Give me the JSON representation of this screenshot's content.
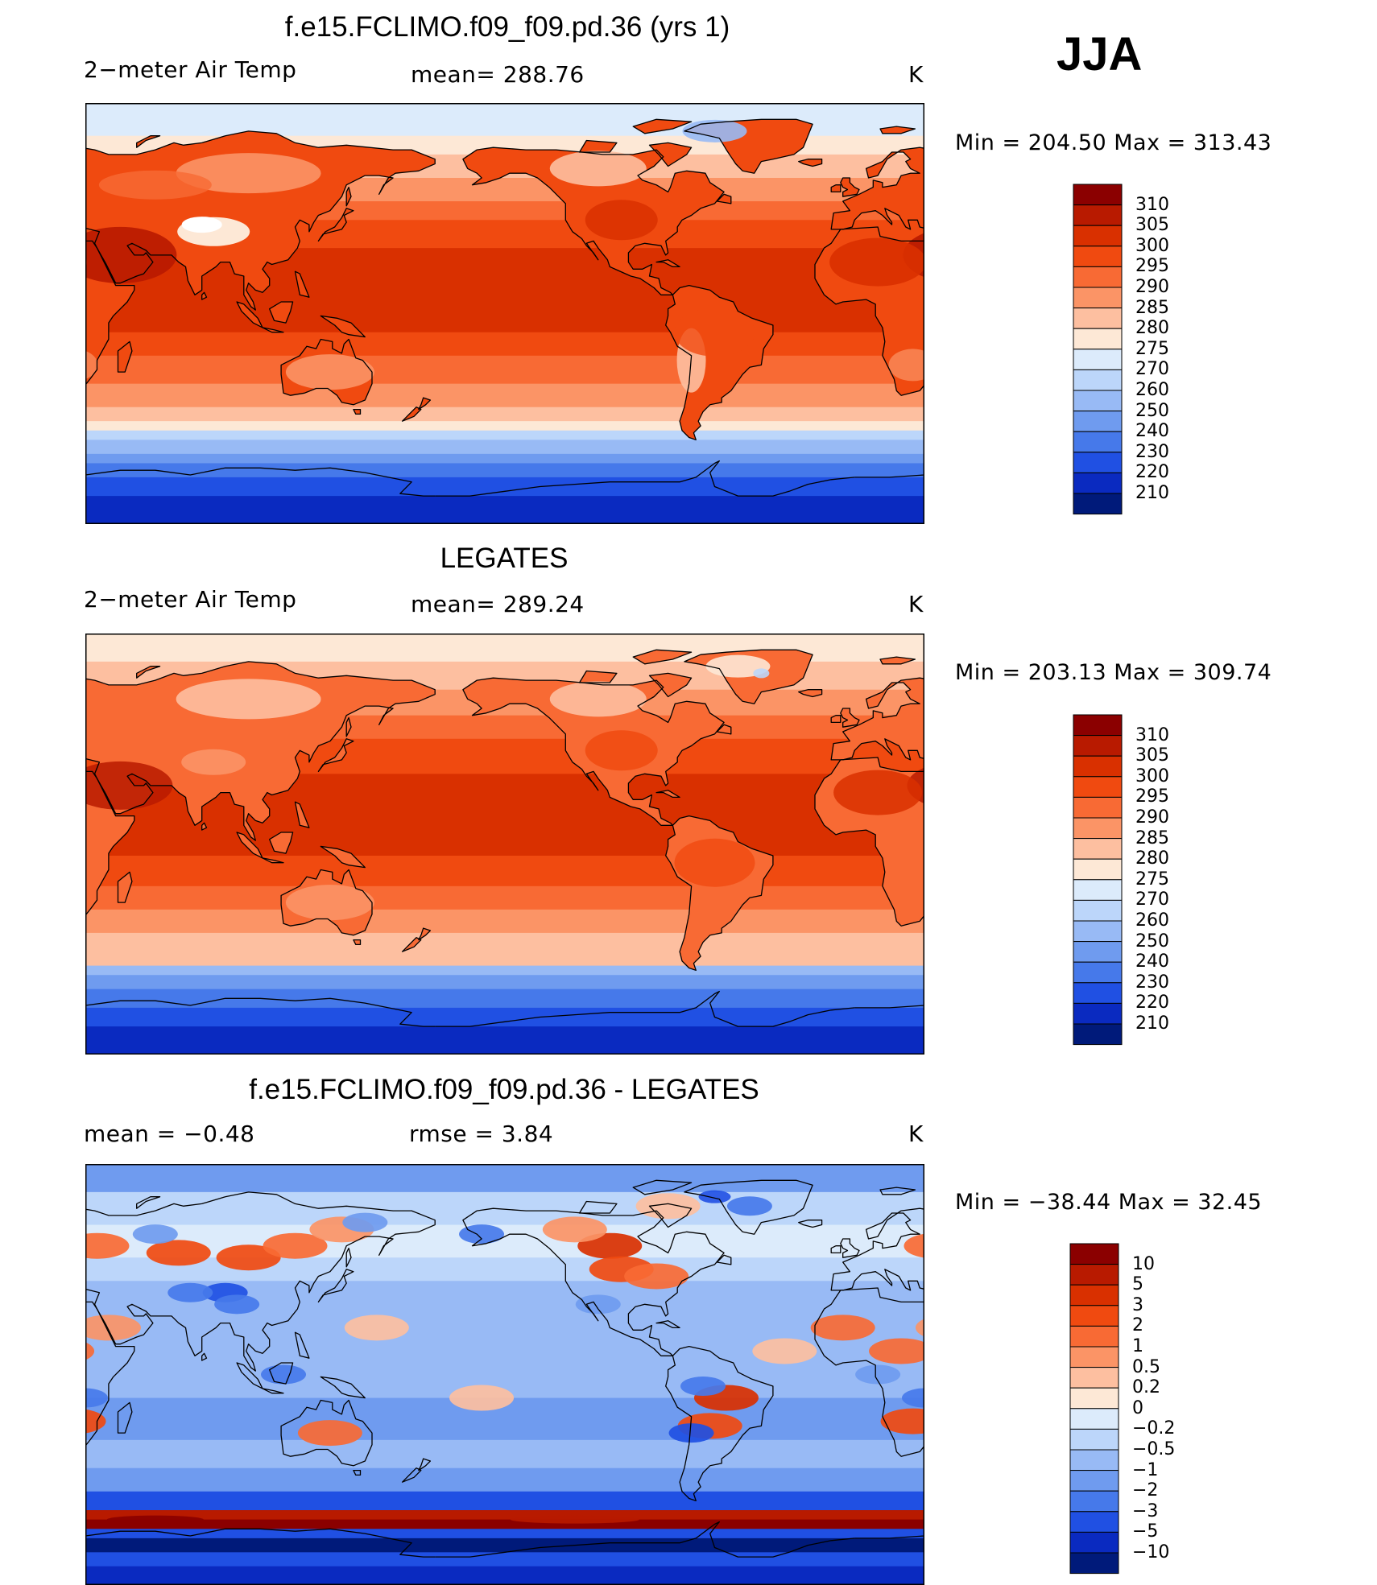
{
  "season": "JJA",
  "panels": [
    {
      "title": "f.e15.FCLIMO.f09_f09.pd.36 (yrs 1)",
      "left_label": "2−meter Air Temp",
      "center_label": "mean=  288.76",
      "units": "K",
      "minmax": "Min  =  204.50  Max  =  313.43",
      "field": "model",
      "colorbar": {
        "labels": [
          "310",
          "305",
          "300",
          "295",
          "290",
          "285",
          "280",
          "275",
          "270",
          "260",
          "250",
          "240",
          "230",
          "220",
          "210"
        ],
        "colors": [
          "#8b0000",
          "#b81a00",
          "#d93000",
          "#f04a10",
          "#f86a34",
          "#fb9466",
          "#fdbfa0",
          "#fde8d6",
          "#dcebfb",
          "#bcd6fa",
          "#98baf5",
          "#6f9bef",
          "#4679ea",
          "#2050e3",
          "#0a2ac0",
          "#001a7a"
        ]
      }
    },
    {
      "title": "LEGATES",
      "left_label": "2−meter Air Temp",
      "center_label": "mean=  289.24",
      "units": "K",
      "minmax": "Min  =  203.13  Max  =  309.74",
      "field": "obs",
      "colorbar": {
        "labels": [
          "310",
          "305",
          "300",
          "295",
          "290",
          "285",
          "280",
          "275",
          "270",
          "260",
          "250",
          "240",
          "230",
          "220",
          "210"
        ],
        "colors": [
          "#8b0000",
          "#b81a00",
          "#d93000",
          "#f04a10",
          "#f86a34",
          "#fb9466",
          "#fdbfa0",
          "#fde8d6",
          "#dcebfb",
          "#bcd6fa",
          "#98baf5",
          "#6f9bef",
          "#4679ea",
          "#2050e3",
          "#0a2ac0",
          "#001a7a"
        ]
      }
    },
    {
      "title": "f.e15.FCLIMO.f09_f09.pd.36 - LEGATES",
      "left_label": "mean =    −0.48",
      "center_label": "rmse =     3.84",
      "units": "K",
      "minmax": "Min  =  −38.44  Max  =    32.45",
      "field": "diff",
      "colorbar": {
        "labels": [
          "10",
          "5",
          "3",
          "2",
          "1",
          "0.5",
          "0.2",
          "0",
          "−0.2",
          "−0.5",
          "−1",
          "−2",
          "−3",
          "−5",
          "−10"
        ],
        "colors": [
          "#8b0000",
          "#b81a00",
          "#d93000",
          "#f04a10",
          "#f86a34",
          "#fb9466",
          "#fdbfa0",
          "#fde8d6",
          "#dcebfb",
          "#bcd6fa",
          "#98baf5",
          "#6f9bef",
          "#4679ea",
          "#2050e3",
          "#0a2ac0",
          "#001a7a"
        ]
      }
    }
  ]
}
